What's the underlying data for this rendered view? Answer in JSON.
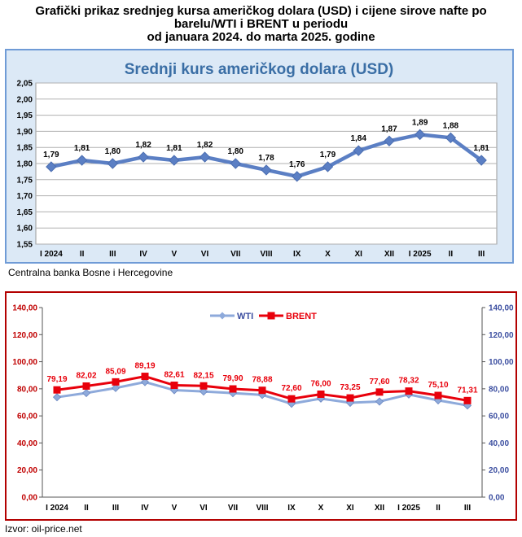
{
  "header": {
    "title_line1": "Grafički prikaz srednjeg kursa američkog dolara (USD) i cijene sirove nafte po",
    "title_line2": "barelu/WTI i BRENT u periodu",
    "title_line3": "od januara 2024. do marta 2025. godine"
  },
  "colors": {
    "usd_line": "#5b7fc4",
    "usd_frame": "#6f9bd6",
    "usd_bg": "#dce9f6",
    "usd_title": "#3a6ea5",
    "wti_line": "#8eaadb",
    "brent_line": "#e8000b",
    "oil_frame": "#b30000",
    "label_red": "#e8000b",
    "axis_red": "#c00000",
    "axis_blue": "#3b4ea0"
  },
  "source1": "Centralna banka Bosne i Hercegovine",
  "source2": "Izvor:  oil-price.net",
  "chart_data": [
    {
      "type": "line",
      "title": "Srednji kurs američkog dolara (USD)",
      "categories": [
        "I 2024",
        "II",
        "III",
        "IV",
        "V",
        "VI",
        "VII",
        "VIII",
        "IX",
        "X",
        "XI",
        "XII",
        "I 2025",
        "II",
        "III"
      ],
      "values": [
        1.79,
        1.81,
        1.8,
        1.82,
        1.81,
        1.82,
        1.8,
        1.78,
        1.76,
        1.79,
        1.84,
        1.87,
        1.89,
        1.88,
        1.81
      ],
      "data_labels": [
        "1,79",
        "1,81",
        "1,80",
        "1,82",
        "1,81",
        "1,82",
        "1,80",
        "1,78",
        "1,76",
        "1,79",
        "1,84",
        "1,87",
        "1,89",
        "1,88",
        "1,81"
      ],
      "ylim": [
        1.55,
        2.05
      ],
      "yticks": [
        1.55,
        1.6,
        1.65,
        1.7,
        1.75,
        1.8,
        1.85,
        1.9,
        1.95,
        2.0,
        2.05
      ],
      "ytick_labels": [
        "1,55",
        "1,60",
        "1,65",
        "1,70",
        "1,75",
        "1,80",
        "1,85",
        "1,90",
        "1,95",
        "2,00",
        "2,05"
      ],
      "grid": true
    },
    {
      "type": "line",
      "categories": [
        "I 2024",
        "II",
        "III",
        "IV",
        "V",
        "VI",
        "VII",
        "VIII",
        "IX",
        "X",
        "XI",
        "XII",
        "I 2025",
        "II",
        "III"
      ],
      "series": [
        {
          "name": "WTI",
          "values": [
            73.8,
            76.9,
            80.6,
            85.0,
            79.0,
            78.0,
            76.8,
            75.5,
            69.0,
            72.8,
            69.7,
            70.6,
            75.8,
            71.5,
            67.7
          ]
        },
        {
          "name": "BRENT",
          "values": [
            79.19,
            82.02,
            85.09,
            89.19,
            82.61,
            82.15,
            79.9,
            78.88,
            72.6,
            76.0,
            73.25,
            77.6,
            78.32,
            75.1,
            71.31
          ],
          "data_labels": [
            "79,19",
            "82,02",
            "85,09",
            "89,19",
            "82,61",
            "82,15",
            "79,90",
            "78,88",
            "72,60",
            "76,00",
            "73,25",
            "77,60",
            "78,32",
            "75,10",
            "71,31"
          ]
        }
      ],
      "ylim": [
        0,
        140
      ],
      "yticks": [
        0,
        20,
        40,
        60,
        80,
        100,
        120,
        140
      ],
      "ytick_labels": [
        "0,00",
        "20,00",
        "40,00",
        "60,00",
        "80,00",
        "100,00",
        "120,00",
        "140,00"
      ],
      "legend": [
        "WTI",
        "BRENT"
      ],
      "legend_position": "top-center",
      "secondary_axis": true,
      "grid": false
    }
  ]
}
